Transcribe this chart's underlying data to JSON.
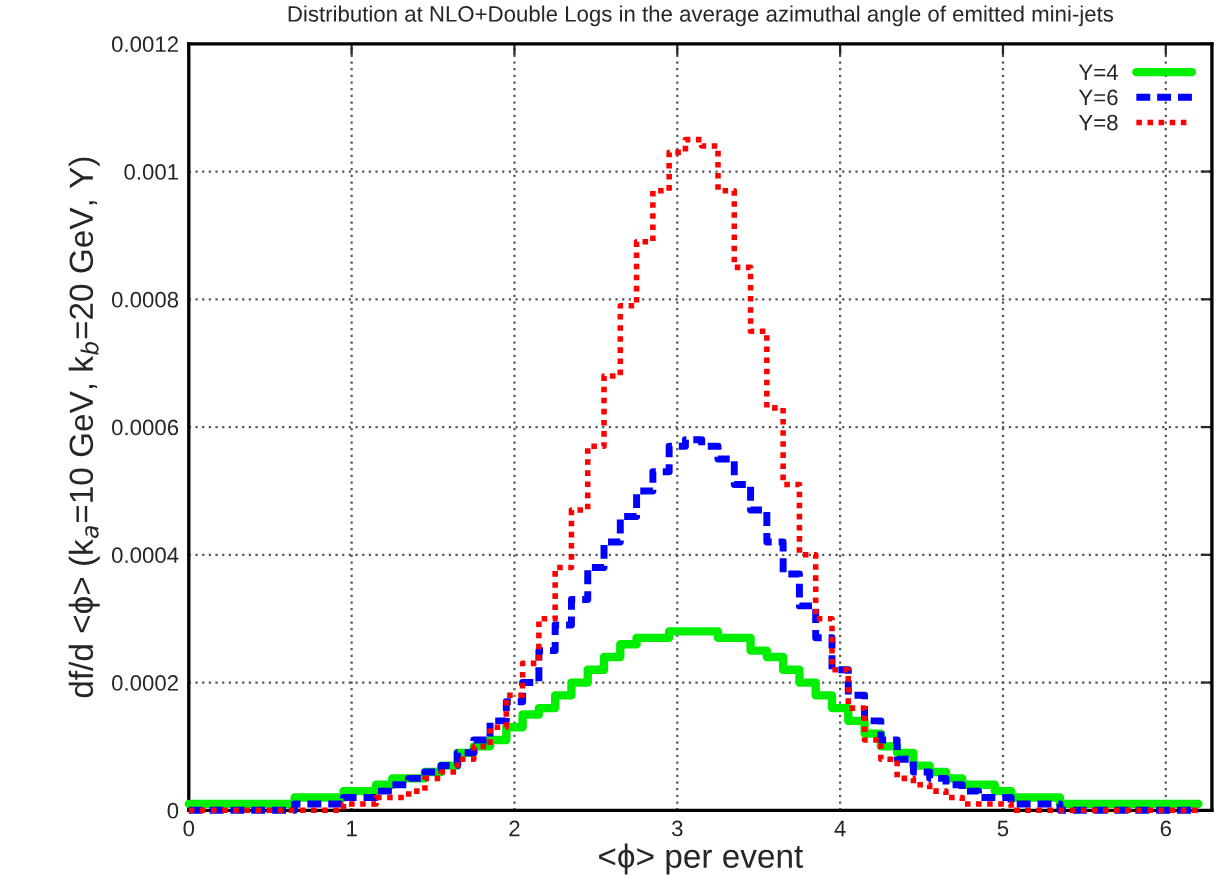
{
  "chart_data": {
    "type": "step",
    "title": "Distribution at NLO+Double Logs in the average azimuthal angle of emitted mini-jets",
    "xlabel": "<ϕ> per event",
    "ylabel": "df/d <ϕ> (k$_{a}$=10 GeV, k$_{b}$=20 GeV, Y)",
    "x": [
      0,
      0.1,
      0.2,
      0.3,
      0.4,
      0.5,
      0.6,
      0.7,
      0.8,
      0.9,
      1.0,
      1.1,
      1.2,
      1.3,
      1.4,
      1.5,
      1.6,
      1.7,
      1.8,
      1.9,
      2.0,
      2.1,
      2.2,
      2.3,
      2.4,
      2.5,
      2.6,
      2.7,
      2.8,
      2.9,
      3.0,
      3.1,
      3.2,
      3.3,
      3.4,
      3.5,
      3.6,
      3.7,
      3.8,
      3.9,
      4.0,
      4.1,
      4.2,
      4.3,
      4.4,
      4.5,
      4.6,
      4.7,
      4.8,
      4.9,
      5.0,
      5.1,
      5.2,
      5.3,
      5.4,
      5.5,
      5.6,
      5.7,
      5.8,
      5.9,
      6.0,
      6.1,
      6.2
    ],
    "series": [
      {
        "name": "Y=4",
        "color": "#00ee00",
        "line_style": "solid",
        "values": [
          1e-05,
          1e-05,
          1e-05,
          1e-05,
          1e-05,
          1e-05,
          1e-05,
          2e-05,
          2e-05,
          2e-05,
          3e-05,
          3e-05,
          4e-05,
          5e-05,
          5e-05,
          6e-05,
          7e-05,
          9e-05,
          0.0001,
          0.00011,
          0.00013,
          0.00015,
          0.00016,
          0.00018,
          0.0002,
          0.00022,
          0.00024,
          0.00026,
          0.00027,
          0.00027,
          0.00028,
          0.00028,
          0.00028,
          0.00027,
          0.00027,
          0.00025,
          0.00024,
          0.00022,
          0.0002,
          0.00018,
          0.00016,
          0.00014,
          0.00012,
          0.0001,
          9e-05,
          7e-05,
          6e-05,
          5e-05,
          4e-05,
          4e-05,
          3e-05,
          2e-05,
          2e-05,
          2e-05,
          1e-05,
          1e-05,
          1e-05,
          1e-05,
          1e-05,
          1e-05,
          1e-05,
          1e-05,
          1e-05
        ]
      },
      {
        "name": "Y=6",
        "color": "#0000ff",
        "line_style": "dashed",
        "values": [
          0,
          0,
          0,
          0,
          0,
          0,
          0,
          1e-05,
          1e-05,
          1e-05,
          2e-05,
          2e-05,
          3e-05,
          4e-05,
          5e-05,
          6e-05,
          7e-05,
          9e-05,
          0.00011,
          0.00014,
          0.00017,
          0.0002,
          0.00025,
          0.00029,
          0.00033,
          0.00038,
          0.00042,
          0.00046,
          0.0005,
          0.00053,
          0.00057,
          0.00058,
          0.00057,
          0.00055,
          0.00051,
          0.00047,
          0.00042,
          0.00037,
          0.00032,
          0.00027,
          0.00022,
          0.00018,
          0.00014,
          0.00011,
          8e-05,
          6e-05,
          5e-05,
          4e-05,
          3e-05,
          2e-05,
          2e-05,
          1e-05,
          1e-05,
          1e-05,
          0,
          0,
          0,
          0,
          0,
          0,
          0,
          0,
          0
        ]
      },
      {
        "name": "Y=8",
        "color": "#ff0000",
        "line_style": "dotted",
        "values": [
          0,
          0,
          0,
          0,
          0,
          0,
          0,
          0,
          0,
          0,
          1e-05,
          1e-05,
          2e-05,
          2e-05,
          3e-05,
          5e-05,
          6e-05,
          8e-05,
          0.0001,
          0.00013,
          0.00018,
          0.00023,
          0.0003,
          0.00038,
          0.00047,
          0.00057,
          0.00068,
          0.00079,
          0.00089,
          0.00097,
          0.00103,
          0.00105,
          0.00104,
          0.00097,
          0.00085,
          0.00075,
          0.00063,
          0.00051,
          0.0004,
          0.0003,
          0.00022,
          0.00016,
          0.00011,
          8e-05,
          5e-05,
          4e-05,
          3e-05,
          2e-05,
          1e-05,
          1e-05,
          1e-05,
          0,
          0,
          0,
          0,
          0,
          0,
          0,
          0,
          0,
          0,
          0,
          0
        ]
      }
    ],
    "xlim": [
      0,
      6.2832
    ],
    "xticks": [
      0,
      1,
      2,
      3,
      4,
      5,
      6
    ],
    "ylim": [
      0,
      0.0012
    ],
    "yticks": [
      0,
      0.0002,
      0.0004,
      0.0006,
      0.0008,
      0.001,
      0.0012
    ],
    "grid": true,
    "legend": "top right"
  }
}
